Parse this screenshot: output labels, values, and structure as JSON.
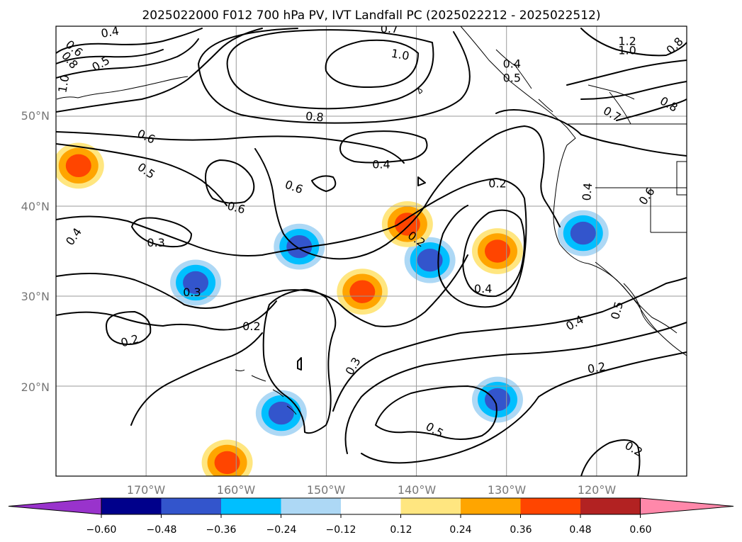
{
  "title": "2025022000 F012 700 hPa PV, IVT Landfall PC (2025022212 - 2025022512)",
  "map": {
    "lon_range": [
      -180,
      -110
    ],
    "lat_range": [
      10,
      60
    ],
    "lat_ticks": [
      {
        "value": 50,
        "label": "50°N"
      },
      {
        "value": 40,
        "label": "40°N"
      },
      {
        "value": 30,
        "label": "30°N"
      },
      {
        "value": 20,
        "label": "20°N"
      }
    ],
    "lon_ticks": [
      {
        "value": -170,
        "label": "170°W"
      },
      {
        "value": -160,
        "label": "160°W"
      },
      {
        "value": -150,
        "label": "150°W"
      },
      {
        "value": -140,
        "label": "140°W"
      },
      {
        "value": -130,
        "label": "130°W"
      },
      {
        "value": -120,
        "label": "120°W"
      }
    ],
    "grid": true
  },
  "colorbar": {
    "extend": "both",
    "colors": [
      "#9933cc",
      "#00008b",
      "#3355cc",
      "#00bfff",
      "#add8f5",
      "#ffffff",
      "#ffe680",
      "#ffa500",
      "#ff4500",
      "#b22222",
      "#ff88aa"
    ],
    "ticks": [
      "−0.60",
      "−0.48",
      "−0.36",
      "−0.24",
      "−0.12",
      "0.12",
      "0.24",
      "0.36",
      "0.48",
      "0.60"
    ]
  },
  "contour_labels": [
    {
      "text": "0.4",
      "lon": -174,
      "lat": 59.3,
      "rot": -10
    },
    {
      "text": "0.6",
      "lon": -178,
      "lat": 57.5,
      "rot": 40
    },
    {
      "text": "0.8",
      "lon": -178.5,
      "lat": 56.2,
      "rot": 50
    },
    {
      "text": "1.0",
      "lon": -179.1,
      "lat": 53.6,
      "rot": -80
    },
    {
      "text": "0.5",
      "lon": -175,
      "lat": 55.8,
      "rot": -30
    },
    {
      "text": "0.7",
      "lon": -143,
      "lat": 59.7,
      "rot": 0
    },
    {
      "text": "1.0",
      "lon": -141.8,
      "lat": 56.8,
      "rot": 10
    },
    {
      "text": "0.8",
      "lon": -151.3,
      "lat": 49.9,
      "rot": 5
    },
    {
      "text": "0.4",
      "lon": -129.4,
      "lat": 55.8,
      "rot": 0
    },
    {
      "text": "0.5",
      "lon": -129.4,
      "lat": 54.2,
      "rot": 0
    },
    {
      "text": "1.2",
      "lon": -116.6,
      "lat": 58.3,
      "rot": 0
    },
    {
      "text": "1.0",
      "lon": -116.6,
      "lat": 57.3,
      "rot": 0
    },
    {
      "text": "0.8",
      "lon": -111.3,
      "lat": 57.8,
      "rot": -45
    },
    {
      "text": "0.8",
      "lon": -112,
      "lat": 51.3,
      "rot": 30
    },
    {
      "text": "0.7",
      "lon": -118.3,
      "lat": 50.2,
      "rot": 30
    },
    {
      "text": "0.6",
      "lon": -170,
      "lat": 47.7,
      "rot": 25
    },
    {
      "text": "0.5",
      "lon": -170,
      "lat": 43.9,
      "rot": 35
    },
    {
      "text": "0.4",
      "lon": -143.9,
      "lat": 44.6,
      "rot": 0
    },
    {
      "text": "0.6",
      "lon": -153.6,
      "lat": 42.1,
      "rot": 20
    },
    {
      "text": "0.6",
      "lon": -160,
      "lat": 39.8,
      "rot": 15
    },
    {
      "text": "0.2",
      "lon": -131,
      "lat": 42.5,
      "rot": 0
    },
    {
      "text": "0.4",
      "lon": -121,
      "lat": 41.6,
      "rot": -85
    },
    {
      "text": "0.6",
      "lon": -114.4,
      "lat": 41.1,
      "rot": -55
    },
    {
      "text": "0.4",
      "lon": -178,
      "lat": 36.6,
      "rot": -55
    },
    {
      "text": "0.3",
      "lon": -168.9,
      "lat": 35.9,
      "rot": 0
    },
    {
      "text": "0.2",
      "lon": -140,
      "lat": 36.3,
      "rot": 35
    },
    {
      "text": "0.4",
      "lon": -132.6,
      "lat": 30.8,
      "rot": 0
    },
    {
      "text": "0.3",
      "lon": -164.9,
      "lat": 30.4,
      "rot": 0
    },
    {
      "text": "0.2",
      "lon": -158.3,
      "lat": 26.6,
      "rot": 0
    },
    {
      "text": "0.2",
      "lon": -171.8,
      "lat": 25,
      "rot": -15
    },
    {
      "text": "0.3",
      "lon": -147,
      "lat": 22.2,
      "rot": -60
    },
    {
      "text": "0.4",
      "lon": -122.4,
      "lat": 27,
      "rot": -30
    },
    {
      "text": "0.5",
      "lon": -117.7,
      "lat": 28.4,
      "rot": -75
    },
    {
      "text": "0.2",
      "lon": -120,
      "lat": 22,
      "rot": -10
    },
    {
      "text": "0.5",
      "lon": -138,
      "lat": 15.1,
      "rot": 30
    },
    {
      "text": "0.2",
      "lon": -115.9,
      "lat": 13,
      "rot": 30
    }
  ],
  "features": [
    {
      "name": "pv-negative-anomaly",
      "lon": -153,
      "lat": 35.5,
      "level": -0.36
    },
    {
      "name": "pv-negative-anomaly",
      "lon": -164.5,
      "lat": 31.5,
      "level": -0.36
    },
    {
      "name": "pv-negative-anomaly",
      "lon": -155,
      "lat": 17,
      "level": -0.36
    },
    {
      "name": "pv-negative-anomaly",
      "lon": -121.5,
      "lat": 37,
      "level": -0.36
    },
    {
      "name": "pv-negative-anomaly",
      "lon": -138.5,
      "lat": 34,
      "level": -0.36
    },
    {
      "name": "pv-negative-anomaly",
      "lon": -131,
      "lat": 18.5,
      "level": -0.36
    },
    {
      "name": "pv-positive-anomaly",
      "lon": -131,
      "lat": 35,
      "level": 0.36
    },
    {
      "name": "pv-positive-anomaly",
      "lon": -177.5,
      "lat": 44.5,
      "level": 0.36
    },
    {
      "name": "pv-positive-anomaly",
      "lon": -146,
      "lat": 30.5,
      "level": 0.36
    },
    {
      "name": "pv-positive-anomaly",
      "lon": -141,
      "lat": 38,
      "level": 0.36
    },
    {
      "name": "pv-positive-anomaly",
      "lon": -161,
      "lat": 11.5,
      "level": 0.36
    }
  ]
}
